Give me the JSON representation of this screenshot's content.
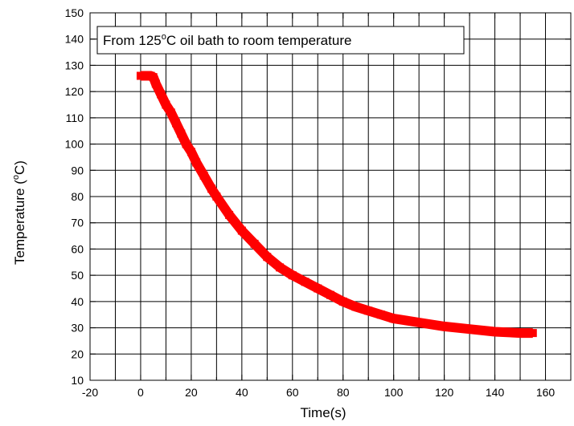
{
  "chart_data": {
    "type": "line",
    "title": "",
    "xlabel": "Time(s)",
    "ylabel_main": "Temperature (",
    "ylabel_sup": "o",
    "ylabel_tail": "C)",
    "xlim": [
      -20,
      170
    ],
    "ylim": [
      10,
      150
    ],
    "xticks": [
      -20,
      0,
      20,
      40,
      60,
      80,
      100,
      120,
      140,
      160
    ],
    "yticks": [
      10,
      20,
      30,
      40,
      50,
      60,
      70,
      80,
      90,
      100,
      110,
      120,
      130,
      140,
      150
    ],
    "grid": true,
    "annotation": {
      "prefix": "From 125",
      "sup": "o",
      "suffix": "C oil bath to room temperature"
    },
    "series": [
      {
        "color": "#ff0000",
        "x": [
          0,
          2,
          4,
          5,
          6,
          8,
          10,
          12,
          14,
          16,
          18,
          20,
          22,
          25,
          28,
          30,
          35,
          40,
          45,
          50,
          55,
          60,
          65,
          70,
          75,
          80,
          85,
          90,
          95,
          100,
          110,
          120,
          130,
          140,
          150,
          155
        ],
        "y": [
          126,
          126,
          126,
          125.5,
          123,
          119,
          115,
          112,
          108,
          104,
          100,
          97,
          93,
          88,
          83,
          80,
          73,
          67,
          62,
          57,
          53,
          50,
          47.5,
          45,
          42.5,
          40,
          38,
          36.5,
          35,
          33.5,
          32,
          30.5,
          29.5,
          28.5,
          28,
          28
        ]
      }
    ]
  }
}
